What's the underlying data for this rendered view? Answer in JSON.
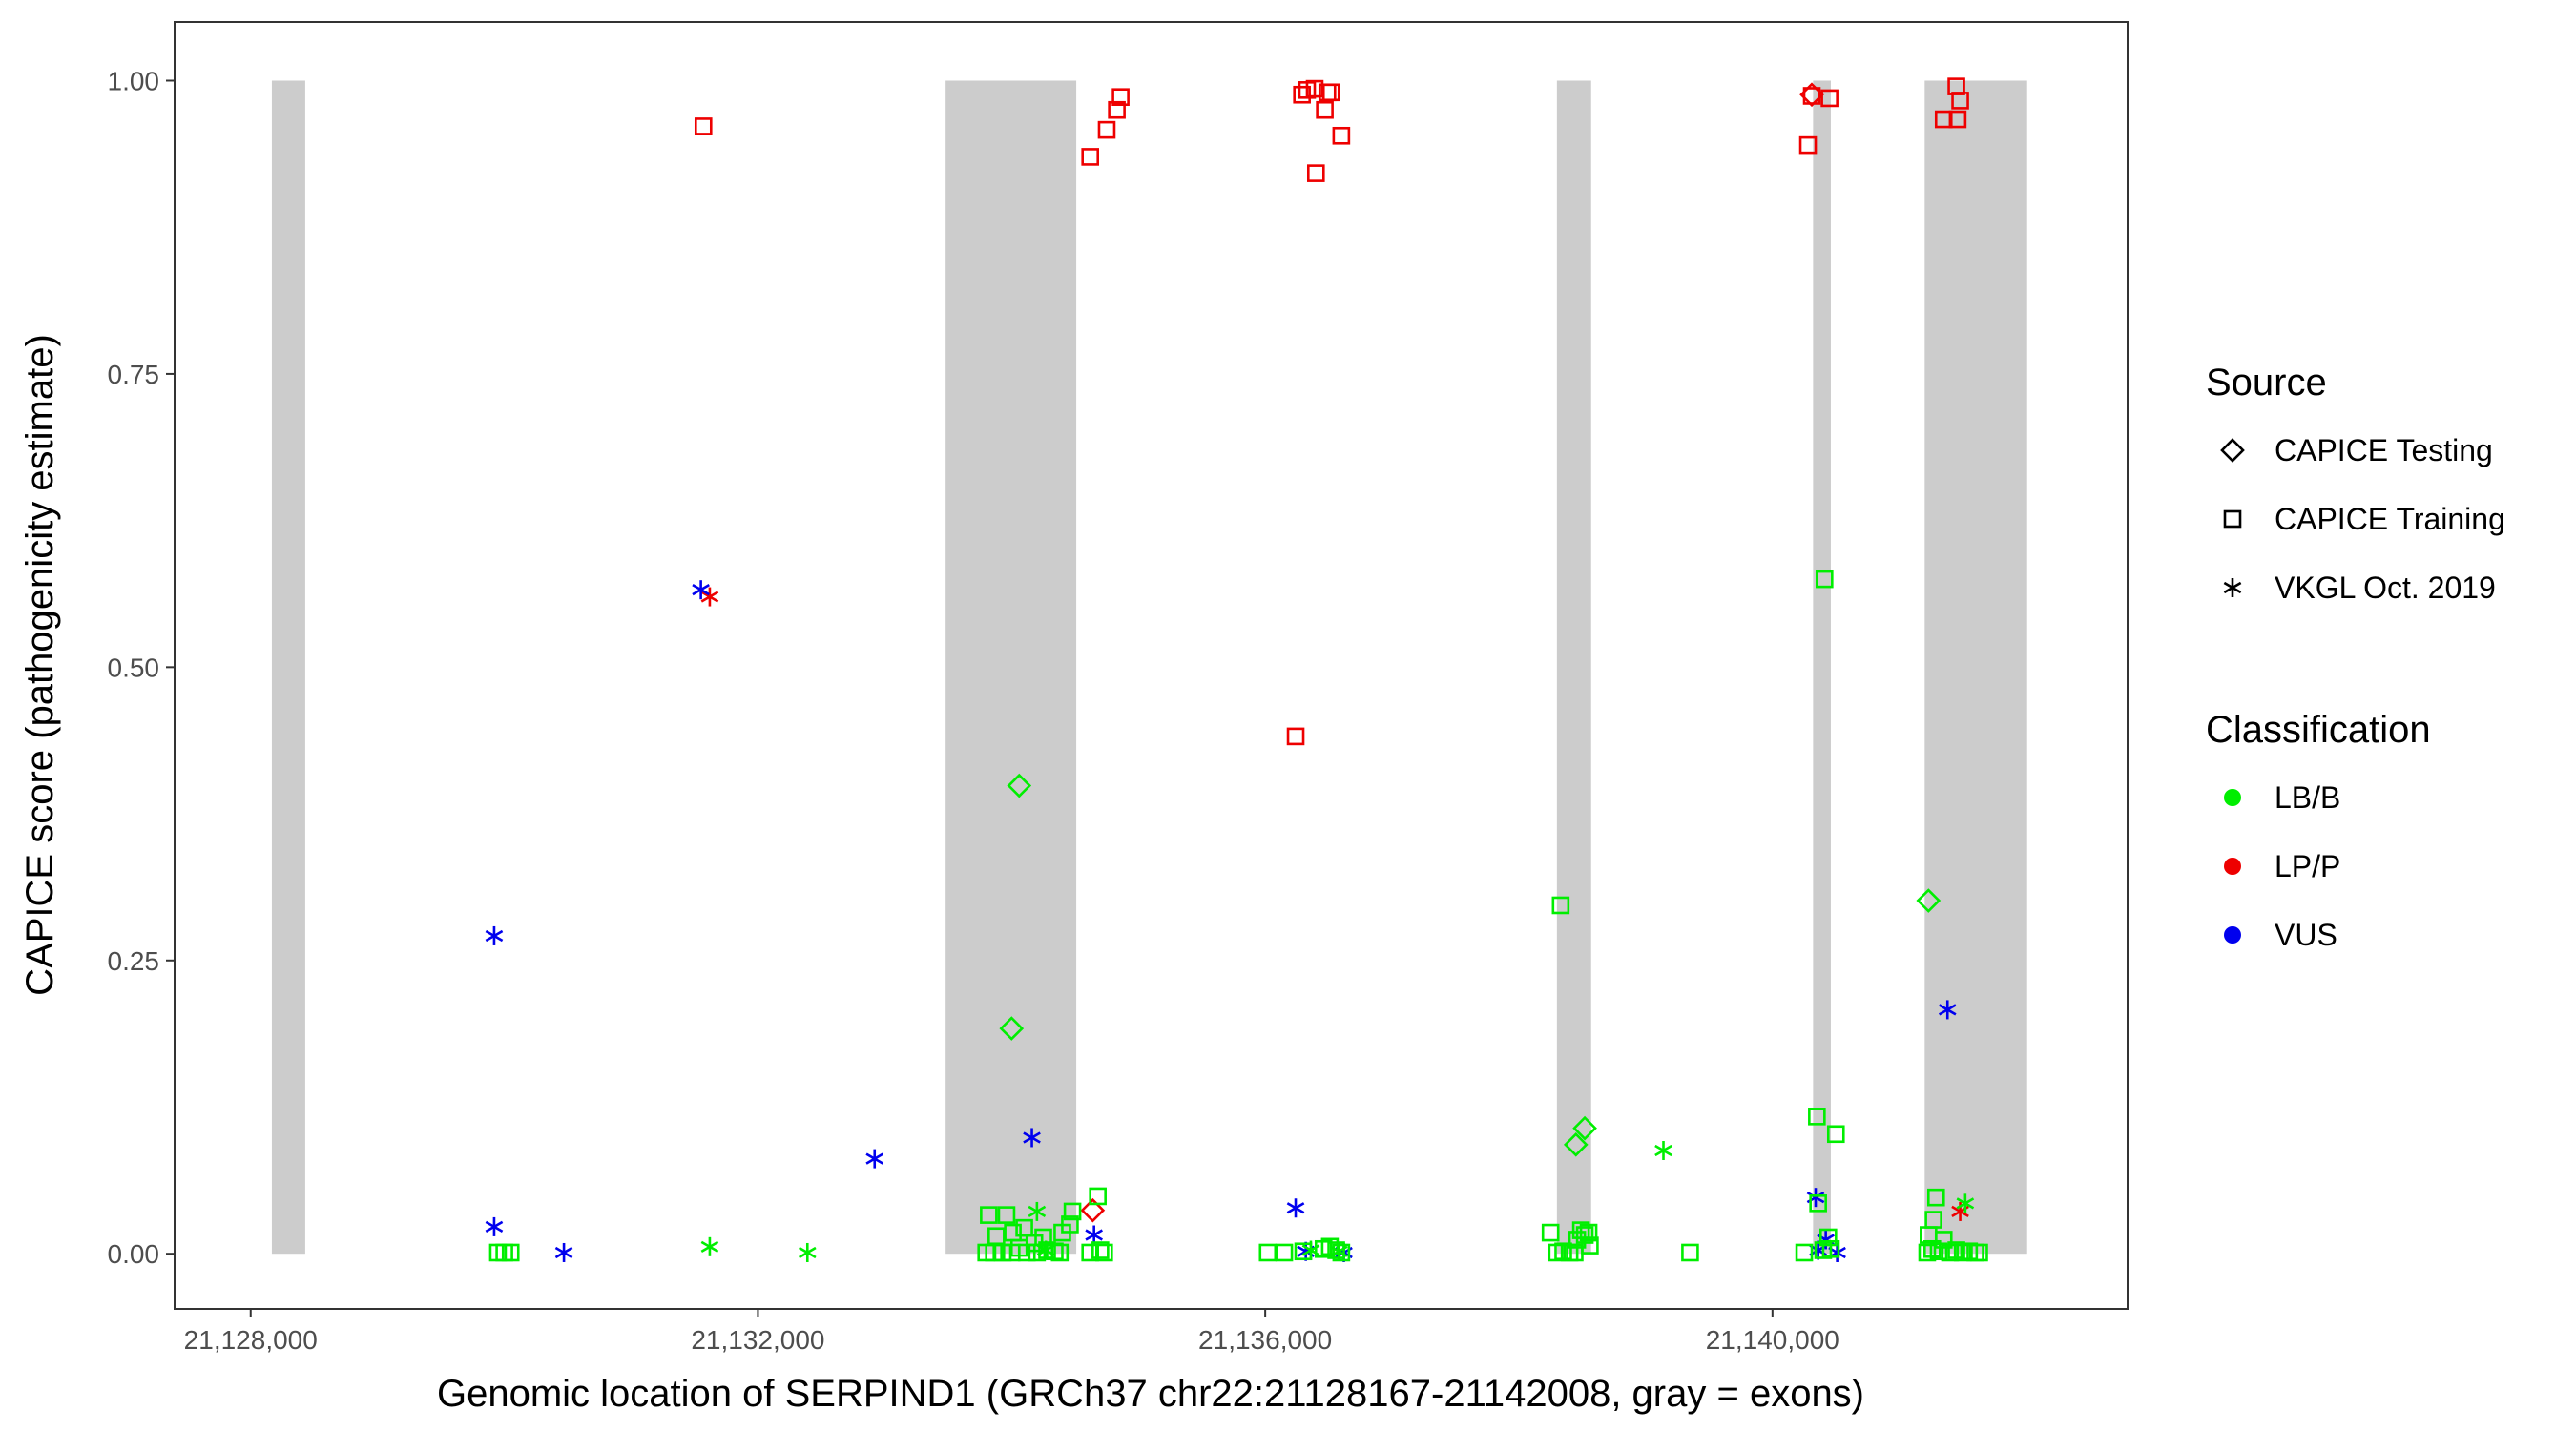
{
  "chart_data": {
    "type": "scatter",
    "title": "",
    "xlabel": "Genomic location of SERPIND1 (GRCh37 chr22:21128167-21142008, gray = exons)",
    "ylabel": "CAPICE score (pathogenicity estimate)",
    "xlim": [
      21127400,
      21142800
    ],
    "ylim": [
      -0.047,
      1.05
    ],
    "x_ticks": [
      21128000,
      21132000,
      21136000,
      21140000
    ],
    "x_tick_labels": [
      "21,128,000",
      "21,132,000",
      "21,136,000",
      "21,140,000"
    ],
    "y_ticks": [
      0,
      0.25,
      0.5,
      0.75,
      1.0
    ],
    "y_tick_labels": [
      "0.00",
      "0.25",
      "0.50",
      "0.75",
      "1.00"
    ],
    "grid": false,
    "exon_color": "#cccccc",
    "exons": [
      [
        21128167,
        21128430
      ],
      [
        21133480,
        21134510
      ],
      [
        21138300,
        21138570
      ],
      [
        21140320,
        21140460
      ],
      [
        21141200,
        21142008
      ]
    ],
    "colors": {
      "LB/B": "#00ee00",
      "LP/P": "#ee0000",
      "VUS": "#0000ee"
    },
    "legend": {
      "position": "right",
      "source_title": "Source",
      "source_items": [
        {
          "label": "CAPICE Testing",
          "shape": "diamond"
        },
        {
          "label": "CAPICE Training",
          "shape": "square"
        },
        {
          "label": "VKGL Oct. 2019",
          "shape": "asterisk"
        }
      ],
      "class_title": "Classification",
      "class_items": [
        {
          "label": "LB/B",
          "key": "LB/B"
        },
        {
          "label": "LP/P",
          "key": "LP/P"
        },
        {
          "label": "VUS",
          "key": "VUS"
        }
      ]
    },
    "series": [
      {
        "source": "CAPICE Training",
        "shape": "square",
        "classification": "LP/P",
        "points": [
          [
            21131570,
            0.961
          ],
          [
            21134620,
            0.935
          ],
          [
            21134750,
            0.958
          ],
          [
            21134830,
            0.975
          ],
          [
            21134860,
            0.986
          ],
          [
            21136290,
            0.988
          ],
          [
            21136330,
            0.992
          ],
          [
            21136390,
            0.993
          ],
          [
            21136400,
            0.921
          ],
          [
            21136470,
            0.975
          ],
          [
            21136490,
            0.99
          ],
          [
            21136520,
            0.99
          ],
          [
            21136600,
            0.953
          ],
          [
            21136240,
            0.441
          ],
          [
            21140280,
            0.945
          ],
          [
            21140310,
            0.987
          ],
          [
            21140450,
            0.985
          ],
          [
            21141350,
            0.967
          ],
          [
            21141450,
            0.995
          ],
          [
            21141460,
            0.967
          ],
          [
            21141480,
            0.983
          ]
        ]
      },
      {
        "source": "CAPICE Testing",
        "shape": "diamond",
        "classification": "LP/P",
        "points": [
          [
            21140310,
            0.988
          ],
          [
            21134640,
            0.037
          ]
        ]
      },
      {
        "source": "VKGL Oct. 2019",
        "shape": "asterisk",
        "classification": "LP/P",
        "points": [
          [
            21131620,
            0.56
          ],
          [
            21141480,
            0.036
          ]
        ]
      },
      {
        "source": "VKGL Oct. 2019",
        "shape": "asterisk",
        "classification": "VUS",
        "points": [
          [
            21129920,
            0.271
          ],
          [
            21129920,
            0.023
          ],
          [
            21130470,
            0.001
          ],
          [
            21131550,
            0.566
          ],
          [
            21132920,
            0.081
          ],
          [
            21134160,
            0.099
          ],
          [
            21134650,
            0.016
          ],
          [
            21136240,
            0.039
          ],
          [
            21136320,
            0.002
          ],
          [
            21136620,
            0.001
          ],
          [
            21140340,
            0.048
          ],
          [
            21140360,
            0.003
          ],
          [
            21140420,
            0.012
          ],
          [
            21140510,
            0.001
          ],
          [
            21141380,
            0.208
          ]
        ]
      },
      {
        "source": "CAPICE Testing",
        "shape": "diamond",
        "classification": "LB/B",
        "points": [
          [
            21134060,
            0.399
          ],
          [
            21134000,
            0.192
          ],
          [
            21138450,
            0.093
          ],
          [
            21138520,
            0.107
          ],
          [
            21141230,
            0.301
          ]
        ]
      },
      {
        "source": "VKGL Oct. 2019",
        "shape": "asterisk",
        "classification": "LB/B",
        "points": [
          [
            21131620,
            0.006
          ],
          [
            21132390,
            0.001
          ],
          [
            21134200,
            0.036
          ],
          [
            21134270,
            0.003
          ],
          [
            21136360,
            0.003
          ],
          [
            21136580,
            0.002
          ],
          [
            21139140,
            0.088
          ],
          [
            21141520,
            0.043
          ]
        ]
      },
      {
        "source": "CAPICE Training",
        "shape": "square",
        "classification": "LB/B",
        "points": [
          [
            21129950,
            0.001
          ],
          [
            21130000,
            0.001
          ],
          [
            21130050,
            0.001
          ],
          [
            21133820,
            0.033
          ],
          [
            21133880,
            0.015
          ],
          [
            21133960,
            0.033
          ],
          [
            21134010,
            0.018
          ],
          [
            21134100,
            0.022
          ],
          [
            21134180,
            0.009
          ],
          [
            21134250,
            0.014
          ],
          [
            21134340,
            0.002
          ],
          [
            21134400,
            0.018
          ],
          [
            21134460,
            0.025
          ],
          [
            21134480,
            0.036
          ],
          [
            21134680,
            0.049
          ],
          [
            21133800,
            0.001
          ],
          [
            21133860,
            0.001
          ],
          [
            21133930,
            0.001
          ],
          [
            21134000,
            0.001
          ],
          [
            21134060,
            0.005
          ],
          [
            21134120,
            0.001
          ],
          [
            21134200,
            0.001
          ],
          [
            21134280,
            0.003
          ],
          [
            21134380,
            0.001
          ],
          [
            21134620,
            0.001
          ],
          [
            21134700,
            0.003
          ],
          [
            21134730,
            0.001
          ],
          [
            21136020,
            0.001
          ],
          [
            21136150,
            0.001
          ],
          [
            21136300,
            0.002
          ],
          [
            21136460,
            0.004
          ],
          [
            21136510,
            0.006
          ],
          [
            21136560,
            0.003
          ],
          [
            21136600,
            0.001
          ],
          [
            21138330,
            0.297
          ],
          [
            21138250,
            0.018
          ],
          [
            21138300,
            0.001
          ],
          [
            21138350,
            0.002
          ],
          [
            21138400,
            0.001
          ],
          [
            21138460,
            0.012
          ],
          [
            21138490,
            0.02
          ],
          [
            21138520,
            0.016
          ],
          [
            21138550,
            0.018
          ],
          [
            21138560,
            0.007
          ],
          [
            21138440,
            0.001
          ],
          [
            21139350,
            0.001
          ],
          [
            21140410,
            0.575
          ],
          [
            21140350,
            0.117
          ],
          [
            21140500,
            0.102
          ],
          [
            21140360,
            0.043
          ],
          [
            21140440,
            0.014
          ],
          [
            21140250,
            0.001
          ],
          [
            21140400,
            0.003
          ],
          [
            21140460,
            0.004
          ],
          [
            21141230,
            0.016
          ],
          [
            21141270,
            0.029
          ],
          [
            21141290,
            0.048
          ],
          [
            21141220,
            0.001
          ],
          [
            21141260,
            0.004
          ],
          [
            21141310,
            0.002
          ],
          [
            21141350,
            0.012
          ],
          [
            21141400,
            0.001
          ],
          [
            21141450,
            0.003
          ],
          [
            21141500,
            0.001
          ],
          [
            21141550,
            0.002
          ],
          [
            21141600,
            0.001
          ],
          [
            21141630,
            0.001
          ]
        ]
      }
    ]
  }
}
